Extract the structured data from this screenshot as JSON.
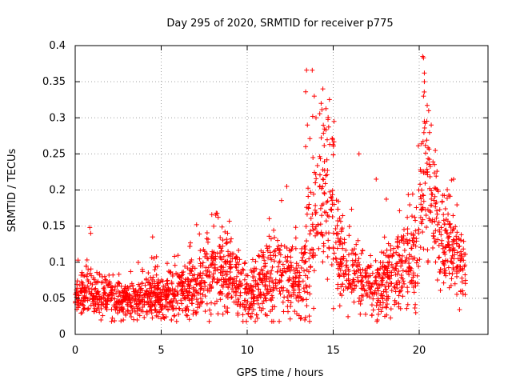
{
  "chart_data": {
    "type": "scatter",
    "title": "Day 295 of 2020, SRMTID for receiver p775",
    "xlabel": "GPS time / hours",
    "ylabel": "SRMTID / TECUs",
    "xlim": [
      0,
      24
    ],
    "ylim": [
      0,
      0.4
    ],
    "xticks": [
      0,
      5,
      10,
      15,
      20
    ],
    "yticks": [
      0,
      0.05,
      0.1,
      0.15,
      0.2,
      0.25,
      0.3,
      0.35,
      0.4
    ],
    "xtick_labels": [
      "0",
      "5",
      "10",
      "15",
      "20"
    ],
    "ytick_labels": [
      "0",
      "0.05",
      "0.1",
      "0.15",
      "0.2",
      "0.25",
      "0.3",
      "0.35",
      "0.4"
    ],
    "grid": true,
    "marker": "+",
    "color": "#ff0000",
    "series_profile": {
      "name": "SRMTID",
      "x": [
        0.0,
        0.8,
        1.0,
        2.0,
        3.0,
        4.0,
        4.6,
        5.0,
        6.0,
        6.8,
        7.5,
        8.2,
        9.0,
        9.6,
        10.0,
        10.5,
        11.0,
        11.6,
        12.0,
        12.4,
        12.9,
        13.2,
        13.5,
        13.9,
        14.3,
        14.8,
        15.2,
        15.7,
        16.2,
        16.8,
        17.4,
        18.0,
        18.6,
        19.2,
        19.7,
        20.0,
        20.3,
        20.7,
        21.2,
        21.7,
        22.2,
        22.7
      ],
      "median": [
        0.055,
        0.06,
        0.055,
        0.05,
        0.048,
        0.05,
        0.058,
        0.052,
        0.055,
        0.065,
        0.08,
        0.09,
        0.085,
        0.065,
        0.05,
        0.06,
        0.075,
        0.08,
        0.09,
        0.075,
        0.06,
        0.08,
        0.12,
        0.16,
        0.2,
        0.18,
        0.13,
        0.1,
        0.09,
        0.07,
        0.065,
        0.07,
        0.085,
        0.1,
        0.11,
        0.14,
        0.22,
        0.18,
        0.14,
        0.12,
        0.1,
        0.075
      ],
      "spread": [
        0.018,
        0.025,
        0.02,
        0.018,
        0.017,
        0.018,
        0.025,
        0.018,
        0.02,
        0.025,
        0.03,
        0.035,
        0.03,
        0.025,
        0.02,
        0.028,
        0.03,
        0.035,
        0.04,
        0.03,
        0.025,
        0.035,
        0.06,
        0.07,
        0.07,
        0.065,
        0.05,
        0.035,
        0.03,
        0.025,
        0.025,
        0.03,
        0.035,
        0.04,
        0.045,
        0.055,
        0.07,
        0.06,
        0.045,
        0.04,
        0.035,
        0.025
      ],
      "outliers": [
        {
          "x": 0.85,
          "y": 0.148
        },
        {
          "x": 0.9,
          "y": 0.14
        },
        {
          "x": 4.5,
          "y": 0.135
        },
        {
          "x": 8.2,
          "y": 0.168
        },
        {
          "x": 12.3,
          "y": 0.205
        },
        {
          "x": 13.45,
          "y": 0.366
        },
        {
          "x": 13.4,
          "y": 0.336
        },
        {
          "x": 13.5,
          "y": 0.29
        },
        {
          "x": 13.4,
          "y": 0.26
        },
        {
          "x": 13.9,
          "y": 0.33
        },
        {
          "x": 14.0,
          "y": 0.3
        },
        {
          "x": 14.4,
          "y": 0.34
        },
        {
          "x": 14.3,
          "y": 0.32
        },
        {
          "x": 15.05,
          "y": 0.295
        },
        {
          "x": 16.5,
          "y": 0.25
        },
        {
          "x": 17.5,
          "y": 0.215
        },
        {
          "x": 20.2,
          "y": 0.385
        },
        {
          "x": 20.25,
          "y": 0.383
        },
        {
          "x": 20.3,
          "y": 0.362
        },
        {
          "x": 20.3,
          "y": 0.35
        },
        {
          "x": 20.25,
          "y": 0.33
        },
        {
          "x": 20.3,
          "y": 0.295
        },
        {
          "x": 20.7,
          "y": 0.29
        },
        {
          "x": 22.0,
          "y": 0.215
        },
        {
          "x": 0.4,
          "y": 0.03
        },
        {
          "x": 1.5,
          "y": 0.02
        },
        {
          "x": 2.8,
          "y": 0.02
        },
        {
          "x": 3.6,
          "y": 0.02
        },
        {
          "x": 10.2,
          "y": 0.025
        },
        {
          "x": 13.35,
          "y": 0.02
        },
        {
          "x": 18.0,
          "y": 0.025
        },
        {
          "x": 19.8,
          "y": 0.03
        }
      ]
    }
  }
}
